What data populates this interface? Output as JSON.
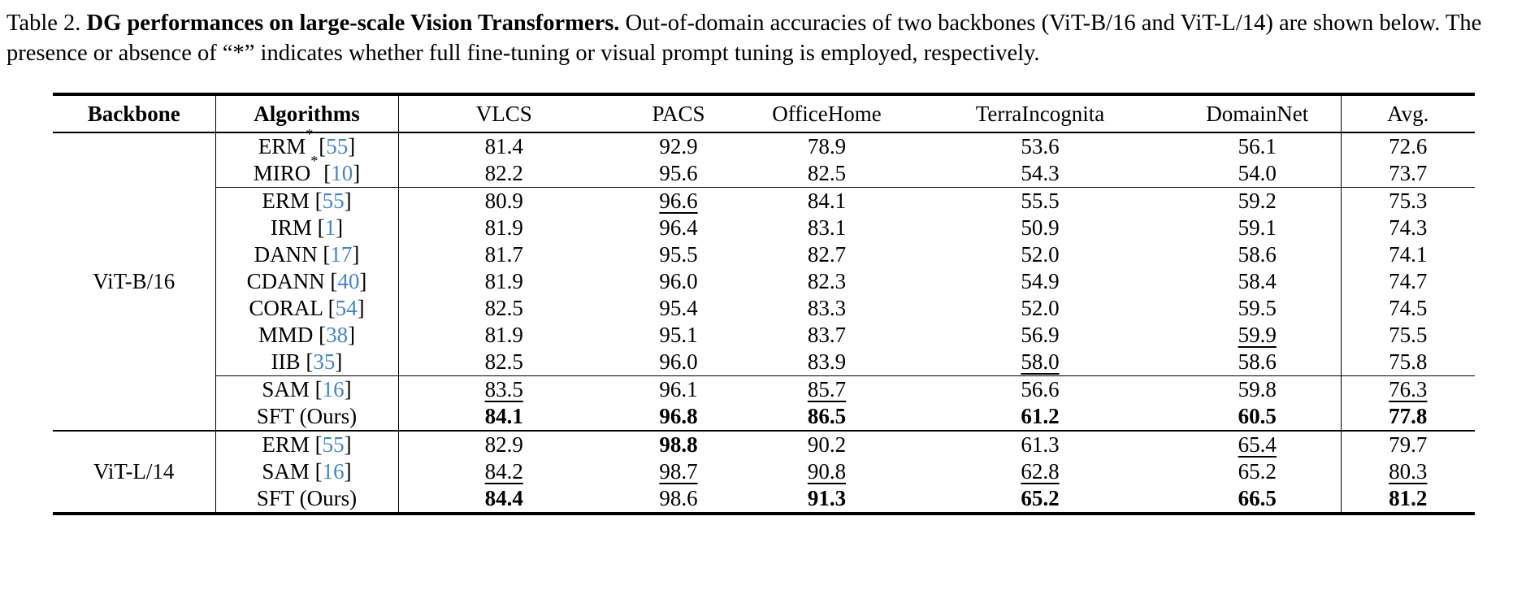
{
  "caption": {
    "label": "Table 2.",
    "title_bold": "DG performances on large-scale Vision Transformers.",
    "body": "Out-of-domain accuracies of two backbones (ViT-B/16 and ViT-L/14) are shown below. The presence or absence of “*” indicates whether full fine-tuning or visual prompt tuning is employed, respectively."
  },
  "colors": {
    "citation_blue": "#4685c5",
    "text": "#000000",
    "rule": "#000000"
  },
  "table": {
    "columns": [
      "Backbone",
      "Algorithms",
      "VLCS",
      "PACS",
      "OfficeHome",
      "TerraIncognita",
      "DomainNet",
      "Avg."
    ],
    "groups": [
      {
        "backbone": "ViT-B/16",
        "subgroups": [
          {
            "rows": [
              {
                "name": "ERM",
                "star": true,
                "cite": "55",
                "cells": [
                  [
                    "81.4",
                    "n"
                  ],
                  [
                    "92.9",
                    "n"
                  ],
                  [
                    "78.9",
                    "n"
                  ],
                  [
                    "53.6",
                    "n"
                  ],
                  [
                    "56.1",
                    "n"
                  ],
                  [
                    "72.6",
                    "n"
                  ]
                ]
              },
              {
                "name": "MIRO",
                "star": true,
                "cite": "10",
                "cells": [
                  [
                    "82.2",
                    "n"
                  ],
                  [
                    "95.6",
                    "n"
                  ],
                  [
                    "82.5",
                    "n"
                  ],
                  [
                    "54.3",
                    "n"
                  ],
                  [
                    "54.0",
                    "n"
                  ],
                  [
                    "73.7",
                    "n"
                  ]
                ]
              }
            ]
          },
          {
            "rows": [
              {
                "name": "ERM",
                "star": false,
                "cite": "55",
                "cells": [
                  [
                    "80.9",
                    "n"
                  ],
                  [
                    "96.6",
                    "u"
                  ],
                  [
                    "84.1",
                    "n"
                  ],
                  [
                    "55.5",
                    "n"
                  ],
                  [
                    "59.2",
                    "n"
                  ],
                  [
                    "75.3",
                    "n"
                  ]
                ]
              },
              {
                "name": "IRM",
                "star": false,
                "cite": "1",
                "cells": [
                  [
                    "81.9",
                    "n"
                  ],
                  [
                    "96.4",
                    "n"
                  ],
                  [
                    "83.1",
                    "n"
                  ],
                  [
                    "50.9",
                    "n"
                  ],
                  [
                    "59.1",
                    "n"
                  ],
                  [
                    "74.3",
                    "n"
                  ]
                ]
              },
              {
                "name": "DANN",
                "star": false,
                "cite": "17",
                "cells": [
                  [
                    "81.7",
                    "n"
                  ],
                  [
                    "95.5",
                    "n"
                  ],
                  [
                    "82.7",
                    "n"
                  ],
                  [
                    "52.0",
                    "n"
                  ],
                  [
                    "58.6",
                    "n"
                  ],
                  [
                    "74.1",
                    "n"
                  ]
                ]
              },
              {
                "name": "CDANN",
                "star": false,
                "cite": "40",
                "cells": [
                  [
                    "81.9",
                    "n"
                  ],
                  [
                    "96.0",
                    "n"
                  ],
                  [
                    "82.3",
                    "n"
                  ],
                  [
                    "54.9",
                    "n"
                  ],
                  [
                    "58.4",
                    "n"
                  ],
                  [
                    "74.7",
                    "n"
                  ]
                ]
              },
              {
                "name": "CORAL",
                "star": false,
                "cite": "54",
                "cells": [
                  [
                    "82.5",
                    "n"
                  ],
                  [
                    "95.4",
                    "n"
                  ],
                  [
                    "83.3",
                    "n"
                  ],
                  [
                    "52.0",
                    "n"
                  ],
                  [
                    "59.5",
                    "n"
                  ],
                  [
                    "74.5",
                    "n"
                  ]
                ]
              },
              {
                "name": "MMD",
                "star": false,
                "cite": "38",
                "cells": [
                  [
                    "81.9",
                    "n"
                  ],
                  [
                    "95.1",
                    "n"
                  ],
                  [
                    "83.7",
                    "n"
                  ],
                  [
                    "56.9",
                    "n"
                  ],
                  [
                    "59.9",
                    "u"
                  ],
                  [
                    "75.5",
                    "n"
                  ]
                ]
              },
              {
                "name": "IIB",
                "star": false,
                "cite": "35",
                "cells": [
                  [
                    "82.5",
                    "n"
                  ],
                  [
                    "96.0",
                    "n"
                  ],
                  [
                    "83.9",
                    "n"
                  ],
                  [
                    "58.0",
                    "u"
                  ],
                  [
                    "58.6",
                    "n"
                  ],
                  [
                    "75.8",
                    "n"
                  ]
                ]
              }
            ]
          },
          {
            "rows": [
              {
                "name": "SAM",
                "star": false,
                "cite": "16",
                "cells": [
                  [
                    "83.5",
                    "u"
                  ],
                  [
                    "96.1",
                    "n"
                  ],
                  [
                    "85.7",
                    "u"
                  ],
                  [
                    "56.6",
                    "n"
                  ],
                  [
                    "59.8",
                    "n"
                  ],
                  [
                    "76.3",
                    "u"
                  ]
                ]
              },
              {
                "name": "SFT (Ours)",
                "star": false,
                "cite": null,
                "cells": [
                  [
                    "84.1",
                    "b"
                  ],
                  [
                    "96.8",
                    "b"
                  ],
                  [
                    "86.5",
                    "b"
                  ],
                  [
                    "61.2",
                    "b"
                  ],
                  [
                    "60.5",
                    "b"
                  ],
                  [
                    "77.8",
                    "b"
                  ]
                ]
              }
            ]
          }
        ]
      },
      {
        "backbone": "ViT-L/14",
        "subgroups": [
          {
            "rows": [
              {
                "name": "ERM",
                "star": false,
                "cite": "55",
                "cells": [
                  [
                    "82.9",
                    "n"
                  ],
                  [
                    "98.8",
                    "b"
                  ],
                  [
                    "90.2",
                    "n"
                  ],
                  [
                    "61.3",
                    "n"
                  ],
                  [
                    "65.4",
                    "u"
                  ],
                  [
                    "79.7",
                    "n"
                  ]
                ]
              },
              {
                "name": "SAM",
                "star": false,
                "cite": "16",
                "cells": [
                  [
                    "84.2",
                    "u"
                  ],
                  [
                    "98.7",
                    "u"
                  ],
                  [
                    "90.8",
                    "u"
                  ],
                  [
                    "62.8",
                    "u"
                  ],
                  [
                    "65.2",
                    "n"
                  ],
                  [
                    "80.3",
                    "u"
                  ]
                ]
              },
              {
                "name": "SFT (Ours)",
                "star": false,
                "cite": null,
                "cells": [
                  [
                    "84.4",
                    "b"
                  ],
                  [
                    "98.6",
                    "n"
                  ],
                  [
                    "91.3",
                    "b"
                  ],
                  [
                    "65.2",
                    "b"
                  ],
                  [
                    "66.5",
                    "b"
                  ],
                  [
                    "81.2",
                    "b"
                  ]
                ]
              }
            ]
          }
        ]
      }
    ]
  }
}
